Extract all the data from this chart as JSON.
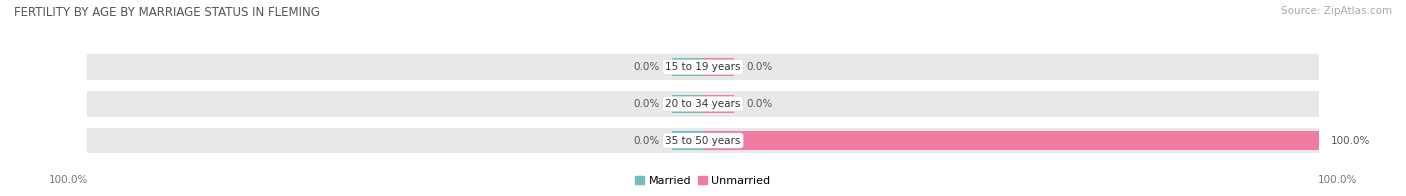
{
  "title": "FERTILITY BY AGE BY MARRIAGE STATUS IN FLEMING",
  "source": "Source: ZipAtlas.com",
  "categories": [
    "15 to 19 years",
    "20 to 34 years",
    "35 to 50 years"
  ],
  "married_values": [
    0.0,
    0.0,
    0.0
  ],
  "unmarried_values": [
    0.0,
    0.0,
    100.0
  ],
  "married_color": "#6dbfbf",
  "unmarried_color": "#f07ca0",
  "bar_bg_color": "#e8e8e8",
  "bar_bg_color_dark": "#d8d8d8",
  "title_fontsize": 8.5,
  "source_fontsize": 7.5,
  "label_fontsize": 7.5,
  "category_fontsize": 7.5,
  "legend_fontsize": 8,
  "background_color": "#ffffff",
  "bar_height": 0.7,
  "max_val": 100.0
}
